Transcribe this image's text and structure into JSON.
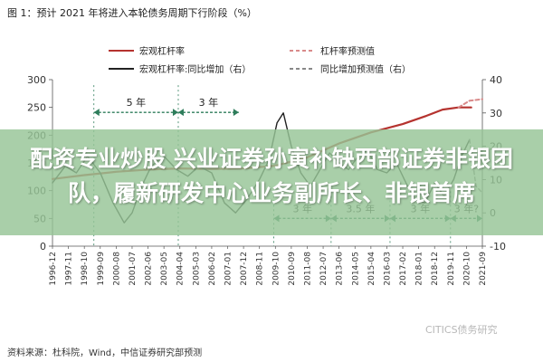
{
  "figure": {
    "title": "图 1：预计 2021 年将进入本轮债务周期下行阶段（%）",
    "source": "资料来源：杜科院，Wind，中信证券研究部预测",
    "watermark": "CITICS债务研究"
  },
  "banner": {
    "text": "配资专业炒股 兴业证券孙寅补缺西部证券非银团队，履新研发中心业务副所长、非银首席"
  },
  "colors": {
    "leverage": "#b5332f",
    "yoy": "#2e7d5b",
    "banner": "#96c496"
  },
  "chart_data": {
    "type": "line",
    "legend": {
      "placement": "top",
      "entries": [
        {
          "name": "宏观杠杆率",
          "style": "solid",
          "color": "#b5332f"
        },
        {
          "name": "杠杆率预测值",
          "style": "dashed",
          "color": "#d98a8a"
        },
        {
          "name": "宏观杠杆率:同比增加（右）",
          "style": "solid",
          "color": "#222222"
        },
        {
          "name": "同比增加预测值（右）",
          "style": "dashed",
          "color": "#888888"
        }
      ]
    },
    "x_ticks": [
      "1996-12",
      "1997-11",
      "1998-10",
      "1999-09",
      "2000-08",
      "2001-07",
      "2002-06",
      "2003-05",
      "2004-04",
      "2005-03",
      "2006-02",
      "2007-01",
      "2007-12",
      "2008-11",
      "2009-10",
      "2010-09",
      "2011-08",
      "2012-07",
      "2013-06",
      "2014-05",
      "2015-04",
      "2016-03",
      "2017-02",
      "2018-01",
      "2018-12",
      "2019-11",
      "2020-10",
      "2021-09"
    ],
    "y_left": {
      "min": 0,
      "max": 300,
      "ticks": [
        0,
        50,
        100,
        150,
        200,
        250,
        300
      ]
    },
    "y_right": {
      "min": -10,
      "max": 40,
      "ticks": [
        -10,
        0,
        10,
        20,
        30,
        40
      ]
    },
    "series": [
      {
        "name": "宏观杠杆率",
        "axis": "left",
        "x": [
          0,
          2,
          4,
          6,
          8,
          10,
          12,
          14,
          16,
          18,
          20,
          22,
          23.5,
          24.5,
          25.5,
          26.3
        ],
        "values": [
          121,
          128,
          134,
          138,
          140,
          139,
          140,
          145,
          160,
          185,
          205,
          220,
          235,
          246,
          250,
          250
        ]
      },
      {
        "name": "杠杆率预测值",
        "axis": "left",
        "x": [
          25.5,
          26.2,
          27
        ],
        "values": [
          250,
          262,
          265
        ]
      },
      {
        "name": "宏观杠杆率:同比增加（右）",
        "axis": "right",
        "x": [
          0,
          0.8,
          1.5,
          2.2,
          3,
          3.8,
          4.5,
          5,
          5.6,
          6.2,
          7,
          7.8,
          8.5,
          9.2,
          10,
          10.8,
          11.5,
          12.2,
          13,
          13.6,
          14.1,
          14.5,
          15,
          15.6,
          16.2,
          16.8,
          17.4,
          18,
          18.6,
          19.2,
          19.8,
          20.4,
          21,
          21.6,
          22.2,
          22.8,
          23.4,
          24,
          24.6,
          25.2,
          25.7,
          26.2
        ],
        "values": [
          9,
          14,
          12,
          17,
          12,
          3,
          -3,
          0,
          8,
          14,
          17,
          13,
          11,
          14,
          12,
          3,
          0,
          4,
          10,
          16,
          27,
          30,
          20,
          12,
          8,
          13,
          18,
          15,
          13,
          17,
          19,
          13,
          12,
          15,
          9,
          4,
          3,
          9,
          5,
          10,
          17,
          22
        ]
      },
      {
        "name": "同比增加预测值（右）",
        "axis": "right",
        "x": [
          26.2,
          26.6,
          27
        ],
        "values": [
          22,
          8,
          6
        ]
      }
    ],
    "annotations": [
      {
        "text": "5 年",
        "x_start": 2.6,
        "x_end": 7.9,
        "y": 241,
        "axis": "left"
      },
      {
        "text": "3 年",
        "x_start": 7.9,
        "x_end": 11.7,
        "y": 241,
        "axis": "left"
      },
      {
        "text": "3 年",
        "x_start": 13.9,
        "x_end": 17.5,
        "y": 50,
        "axis": "left"
      },
      {
        "text": "3.5 年",
        "x_start": 17.5,
        "x_end": 21.2,
        "y": 50,
        "axis": "left"
      },
      {
        "text": "3 年",
        "x_start": 21.2,
        "x_end": 25.0,
        "y": 50,
        "axis": "left"
      },
      {
        "text": "3 年?",
        "x_start": 25.0,
        "x_end": 27.0,
        "y": 50,
        "axis": "left"
      }
    ],
    "grid": false
  }
}
